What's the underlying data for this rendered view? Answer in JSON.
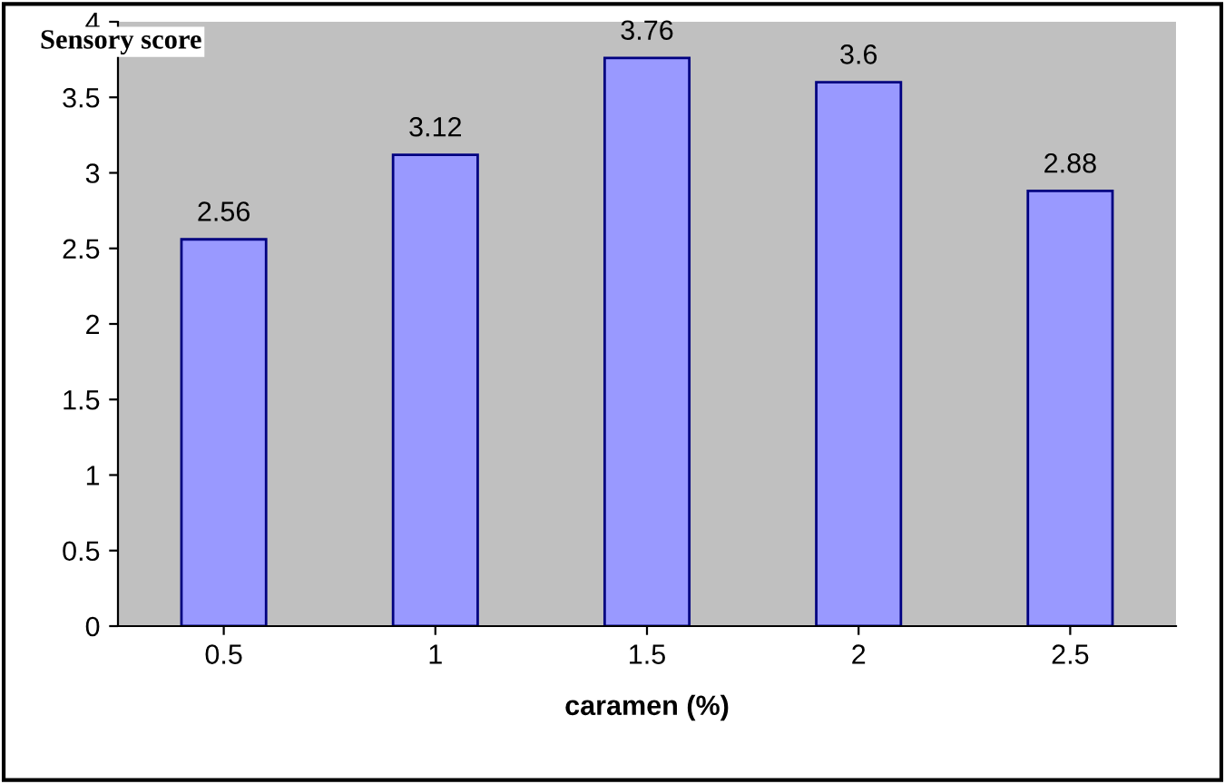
{
  "chart_data": {
    "type": "bar",
    "ylabel": "Sensory score",
    "xlabel": "caramen (%)",
    "categories": [
      "0.5",
      "1",
      "1.5",
      "2",
      "2.5"
    ],
    "values": [
      2.56,
      3.12,
      3.76,
      3.6,
      2.88
    ],
    "color": "#9999ff",
    "ylim": [
      0,
      4
    ],
    "yticks": [
      0,
      0.5,
      1,
      1.5,
      2,
      2.5,
      3,
      3.5,
      4
    ],
    "data_labels": true,
    "grid": false
  }
}
